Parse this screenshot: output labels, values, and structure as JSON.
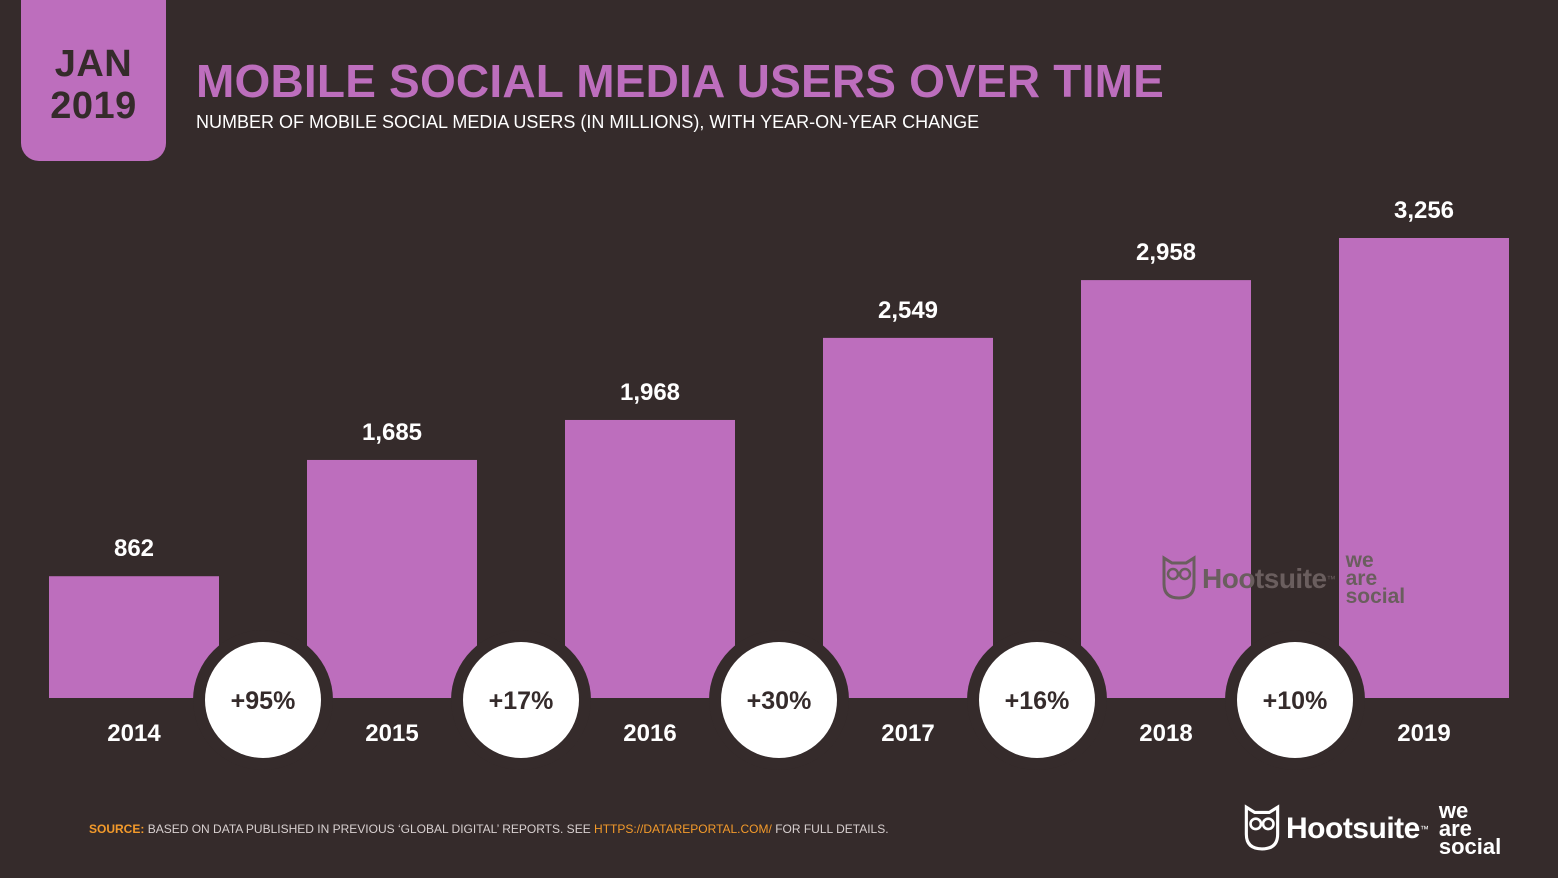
{
  "header": {
    "badge_month": "JAN",
    "badge_year": "2019",
    "title": "MOBILE SOCIAL MEDIA USERS OVER TIME",
    "subtitle": "NUMBER OF MOBILE SOCIAL MEDIA USERS (IN MILLIONS), WITH YEAR-ON-YEAR CHANGE"
  },
  "chart_data": {
    "type": "bar",
    "categories": [
      "2014",
      "2015",
      "2016",
      "2017",
      "2018",
      "2019"
    ],
    "values": [
      862,
      1685,
      1968,
      2549,
      2958,
      3256
    ],
    "value_labels": [
      "862",
      "1,685",
      "1,968",
      "2,549",
      "2,958",
      "3,256"
    ],
    "yoy_change": [
      "+95%",
      "+17%",
      "+30%",
      "+16%",
      "+10%"
    ],
    "title": "MOBILE SOCIAL MEDIA USERS OVER TIME",
    "subtitle": "NUMBER OF MOBILE SOCIAL MEDIA USERS (IN MILLIONS), WITH YEAR-ON-YEAR CHANGE",
    "xlabel": "",
    "ylabel": "",
    "ylim": [
      0,
      3256
    ],
    "grid": false,
    "legend": "none",
    "colors": {
      "bar": "#bd6ebd",
      "background": "#352b2b",
      "change_circle": "#ffffff",
      "change_text": "#352b2b",
      "value_label": "#ffffff",
      "category_label": "#ffffff"
    }
  },
  "footer": {
    "source_label": "SOURCE:",
    "source_text": "BASED ON DATA PUBLISHED IN PREVIOUS ‘GLOBAL DIGITAL’ REPORTS. SEE",
    "source_link": "HTTPS://DATAREPORTAL.COM/",
    "source_suffix": "FOR FULL DETAILS."
  },
  "brand": {
    "logo_name": "Hootsuite",
    "trademark": "™",
    "was_line1": "we",
    "was_line2": "are",
    "was_line3": "social",
    "icon": "owl-icon"
  }
}
